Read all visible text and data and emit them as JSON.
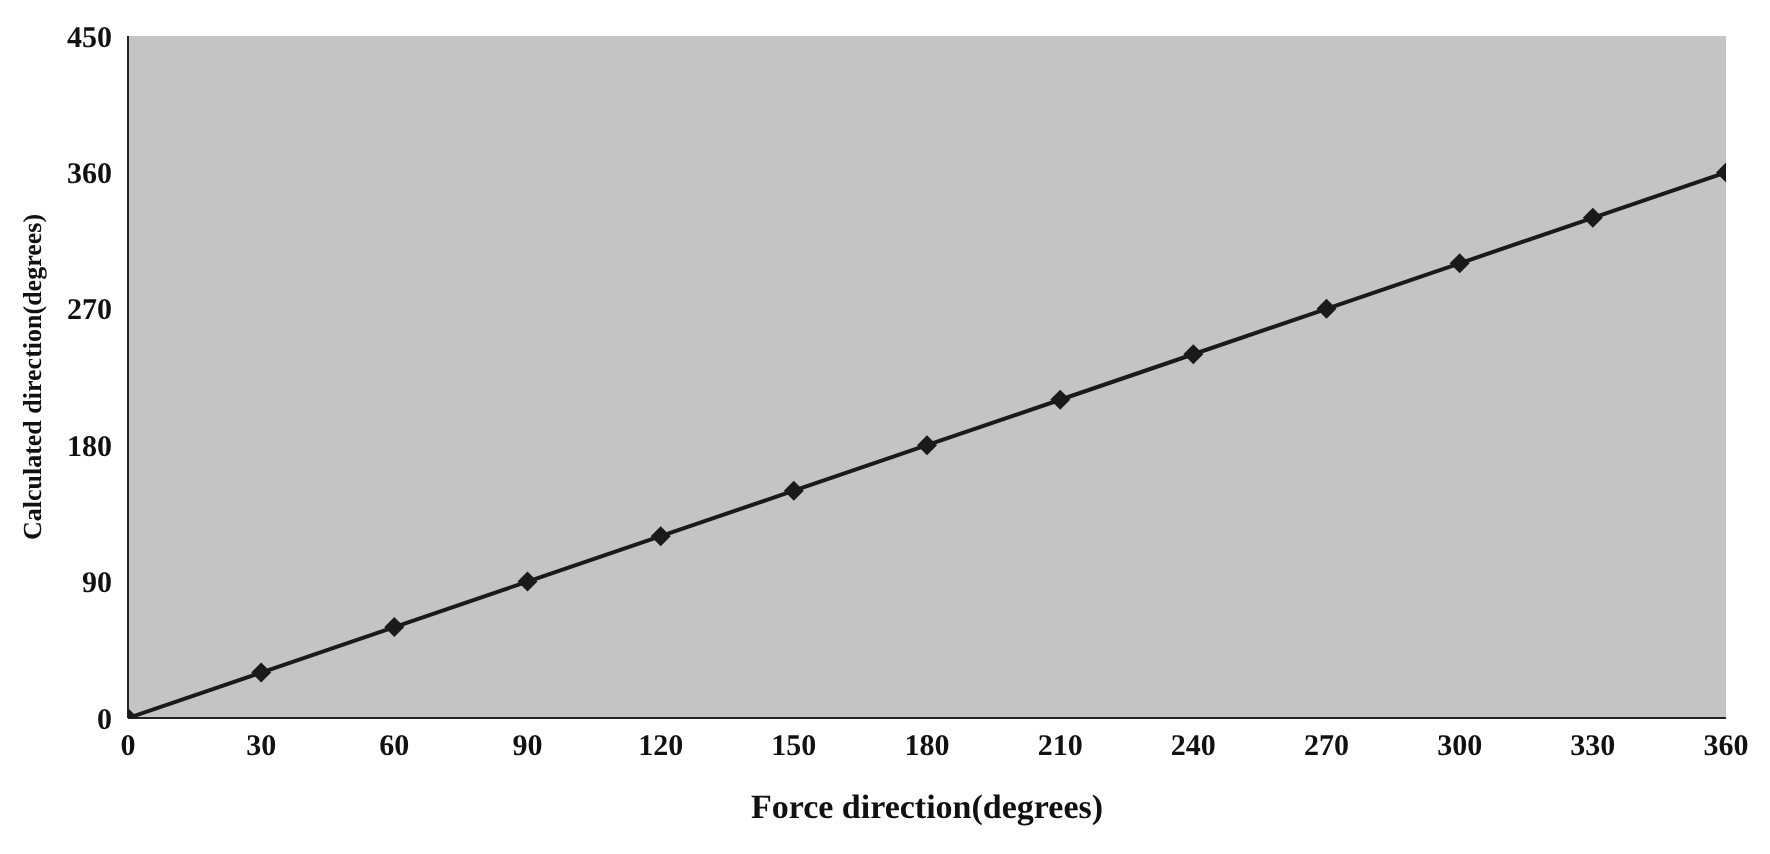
{
  "chart_data": {
    "type": "line",
    "xlabel": "Force direction(degrees)",
    "ylabel": "Calculated direction(degrees)",
    "x": [
      0,
      30,
      60,
      90,
      120,
      150,
      180,
      210,
      240,
      270,
      300,
      330,
      360
    ],
    "series": [
      {
        "color": "#1a1a1a",
        "values": [
          0,
          30,
          60,
          90,
          120,
          150,
          180,
          210,
          240,
          270,
          300,
          330,
          360
        ]
      }
    ],
    "xlim": [
      0,
      360
    ],
    "xticks": [
      0,
      30,
      60,
      90,
      120,
      150,
      180,
      210,
      240,
      270,
      300,
      330,
      360
    ],
    "ylim": [
      0,
      450
    ],
    "yticks": [
      0,
      90,
      180,
      270,
      360,
      450
    ],
    "marker": "diamond",
    "grid": false
  }
}
